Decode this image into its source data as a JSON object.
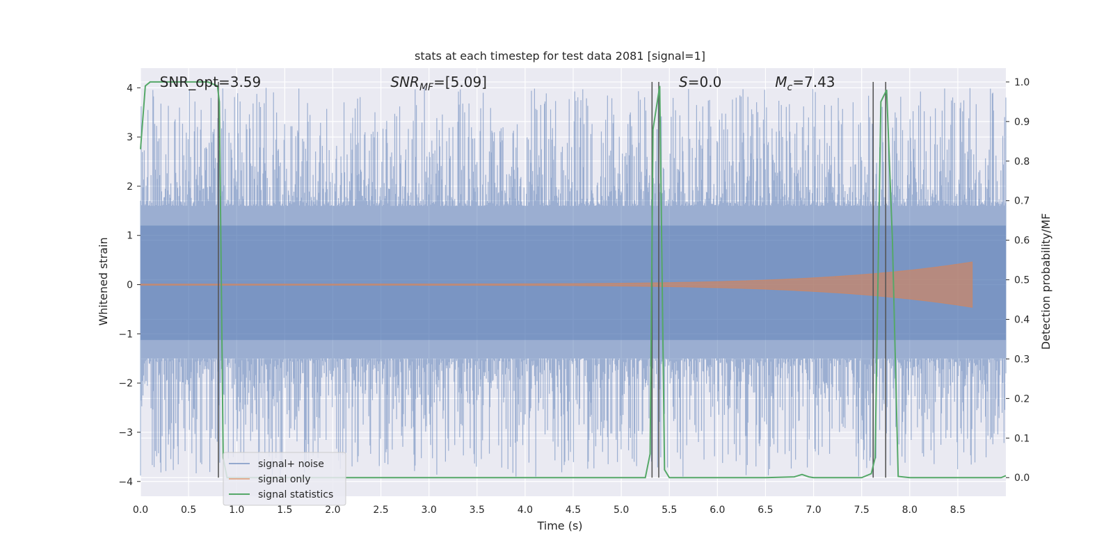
{
  "chart_data": {
    "type": "line",
    "title": "stats at each timestep for test data 2081 [signal=1]",
    "xlabel": "Time (s)",
    "ylabel_left": "Whitened strain",
    "ylabel_right": "Detection probability/MF",
    "xlim": [
      0.0,
      9.0
    ],
    "ylim_left": [
      -4.3,
      4.4
    ],
    "ylim_right": [
      -0.047,
      1.035
    ],
    "x_ticks": [
      "0.0",
      "0.5",
      "1.0",
      "1.5",
      "2.0",
      "2.5",
      "3.0",
      "3.5",
      "4.0",
      "4.5",
      "5.0",
      "5.5",
      "6.0",
      "6.5",
      "7.0",
      "7.5",
      "8.0",
      "8.5"
    ],
    "y_ticks_left": [
      "−4",
      "−3",
      "−2",
      "−1",
      "0",
      "1",
      "2",
      "3",
      "4"
    ],
    "y_ticks_right": [
      "0.0",
      "0.1",
      "0.2",
      "0.3",
      "0.4",
      "0.5",
      "0.6",
      "0.7",
      "0.8",
      "0.9",
      "1.0"
    ],
    "grid": true,
    "legend_placement": "lower-left",
    "annotations": [
      {
        "text": "SNR_opt=3.59",
        "x": 0.2,
        "y": 4.12
      },
      {
        "text": "SNR_MF=[5.09]",
        "x": 2.6,
        "y": 4.12
      },
      {
        "text": "S=0.0",
        "x": 5.6,
        "y": 4.12
      },
      {
        "text": "M_c=7.43",
        "x": 6.6,
        "y": 4.12
      }
    ],
    "series": [
      {
        "name": "signal+ noise",
        "axis": "left",
        "color": "#4c72b0",
        "kind": "noise",
        "time_range": [
          0.0,
          9.0
        ],
        "band_low": -1.5,
        "band_high": 1.6,
        "peak_max": 4.0,
        "peak_min": -3.9
      },
      {
        "name": "signal only",
        "axis": "left",
        "color": "#dd8452",
        "kind": "chirp",
        "time_range": [
          0.0,
          8.65
        ],
        "amplitude_end": 0.45
      },
      {
        "name": "signal statistics",
        "axis": "right",
        "color": "#55a868",
        "kind": "line",
        "x": [
          0.0,
          0.05,
          0.1,
          0.2,
          0.3,
          0.5,
          0.7,
          0.8,
          0.82,
          0.86,
          0.9,
          1.0,
          2.0,
          3.0,
          4.0,
          5.0,
          5.25,
          5.3,
          5.33,
          5.4,
          5.45,
          5.5,
          6.0,
          6.5,
          6.8,
          6.88,
          6.95,
          7.0,
          7.5,
          7.6,
          7.64,
          7.7,
          7.76,
          7.82,
          7.88,
          8.0,
          8.5,
          8.95,
          9.0
        ],
        "y": [
          0.83,
          0.99,
          1.0,
          1.0,
          1.0,
          1.0,
          1.0,
          0.99,
          0.95,
          0.05,
          0.0,
          0.0,
          0.0,
          0.0,
          0.0,
          0.0,
          0.0,
          0.06,
          0.88,
          0.99,
          0.02,
          0.0,
          0.0,
          0.0,
          0.002,
          0.008,
          0.002,
          0.0,
          0.0,
          0.01,
          0.05,
          0.95,
          0.98,
          0.6,
          0.003,
          0.0,
          0.0,
          0.0,
          0.005
        ]
      }
    ],
    "vertical_markers": {
      "color": "#555555",
      "x": [
        0.81,
        5.32,
        5.39,
        7.62,
        7.75
      ]
    }
  },
  "legend": {
    "items": [
      {
        "label": "signal+ noise",
        "color": "#4c72b0"
      },
      {
        "label": "signal only",
        "color": "#dd8452"
      },
      {
        "label": "signal statistics",
        "color": "#55a868"
      }
    ]
  },
  "style": {
    "plot_background": "#eaeaf2",
    "grid_color": "#ffffff",
    "text_color": "#262626"
  }
}
